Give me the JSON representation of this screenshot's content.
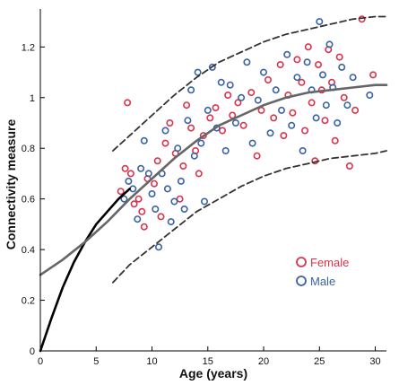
{
  "chart_data": {
    "type": "scatter",
    "title": "",
    "xlabel": "Age (years)",
    "ylabel": "Connectivity measure",
    "xlim": [
      0,
      31
    ],
    "ylim": [
      0,
      1.35
    ],
    "xticks": [
      0,
      5,
      10,
      15,
      20,
      25,
      30
    ],
    "yticks": [
      0,
      0.2,
      0.4,
      0.6,
      0.8,
      1,
      1.2
    ],
    "xtick_labels": [
      "0",
      "5",
      "10",
      "15",
      "20",
      "25",
      "30"
    ],
    "ytick_labels": [
      "0",
      "0.2",
      "0.4",
      "0.6",
      "0.8",
      "1",
      "1.2"
    ],
    "grid": false,
    "legend_position": "right-middle",
    "colors": {
      "female": "#d9344d",
      "male": "#3a62a6",
      "fit_black": "#000000",
      "fit_gray": "#666666",
      "dashed": "#333333"
    },
    "series": [
      {
        "name": "Female",
        "marker": "open-circle",
        "color": "#d9344d",
        "points": [
          [
            7.2,
            0.63
          ],
          [
            7.6,
            0.72
          ],
          [
            7.8,
            0.98
          ],
          [
            8.1,
            0.7
          ],
          [
            8.4,
            0.58
          ],
          [
            8.8,
            0.6
          ],
          [
            9.1,
            0.55
          ],
          [
            9.3,
            0.49
          ],
          [
            9.6,
            0.68
          ],
          [
            10.2,
            0.66
          ],
          [
            10.5,
            0.75
          ],
          [
            10.8,
            0.53
          ],
          [
            11.2,
            0.82
          ],
          [
            11.6,
            0.9
          ],
          [
            12.1,
            0.78
          ],
          [
            12.5,
            0.6
          ],
          [
            12.8,
            0.73
          ],
          [
            13.1,
            0.97
          ],
          [
            13.5,
            0.88
          ],
          [
            13.9,
            0.79
          ],
          [
            14.2,
            0.7
          ],
          [
            14.6,
            0.85
          ],
          [
            15.2,
            0.92
          ],
          [
            15.7,
            0.96
          ],
          [
            16.3,
            0.87
          ],
          [
            16.8,
            1.01
          ],
          [
            17.2,
            0.93
          ],
          [
            17.7,
            0.98
          ],
          [
            18.2,
            0.89
          ],
          [
            18.9,
            1.02
          ],
          [
            19.4,
            0.77
          ],
          [
            19.8,
            0.95
          ],
          [
            20.4,
            1.07
          ],
          [
            20.9,
            0.92
          ],
          [
            21.5,
            1.13
          ],
          [
            21.8,
            0.85
          ],
          [
            22.2,
            1.01
          ],
          [
            22.6,
            0.94
          ],
          [
            23.0,
            1.15
          ],
          [
            23.4,
            1.06
          ],
          [
            23.7,
            0.87
          ],
          [
            24.0,
            1.2
          ],
          [
            24.3,
            0.98
          ],
          [
            24.6,
            0.75
          ],
          [
            24.9,
            1.13
          ],
          [
            25.2,
            1.03
          ],
          [
            25.5,
            0.91
          ],
          [
            25.8,
            1.19
          ],
          [
            26.1,
            1.06
          ],
          [
            26.4,
            0.83
          ],
          [
            26.8,
            1.16
          ],
          [
            27.2,
            1.0
          ],
          [
            27.7,
            0.73
          ],
          [
            28.2,
            0.95
          ],
          [
            28.8,
            1.31
          ],
          [
            29.8,
            1.09
          ]
        ]
      },
      {
        "name": "Male",
        "marker": "open-circle",
        "color": "#3a62a6",
        "points": [
          [
            7.5,
            0.6
          ],
          [
            7.9,
            0.67
          ],
          [
            8.3,
            0.64
          ],
          [
            8.7,
            0.52
          ],
          [
            9.0,
            0.72
          ],
          [
            9.3,
            0.83
          ],
          [
            9.7,
            0.7
          ],
          [
            10.0,
            0.62
          ],
          [
            10.3,
            0.56
          ],
          [
            10.6,
            0.41
          ],
          [
            10.9,
            0.7
          ],
          [
            11.2,
            0.87
          ],
          [
            11.4,
            0.64
          ],
          [
            11.7,
            0.51
          ],
          [
            12.0,
            0.59
          ],
          [
            12.3,
            0.8
          ],
          [
            12.6,
            0.67
          ],
          [
            12.9,
            0.56
          ],
          [
            13.2,
            0.91
          ],
          [
            13.5,
            1.03
          ],
          [
            13.8,
            0.77
          ],
          [
            14.1,
            1.1
          ],
          [
            14.4,
            0.82
          ],
          [
            14.7,
            0.59
          ],
          [
            15.0,
            0.95
          ],
          [
            15.4,
            1.12
          ],
          [
            15.8,
            0.88
          ],
          [
            16.2,
            1.06
          ],
          [
            16.6,
            0.79
          ],
          [
            17.0,
            1.05
          ],
          [
            17.5,
            0.9
          ],
          [
            18.0,
            1.0
          ],
          [
            18.5,
            1.14
          ],
          [
            19.0,
            0.82
          ],
          [
            19.5,
            0.99
          ],
          [
            20.0,
            1.1
          ],
          [
            20.6,
            0.86
          ],
          [
            21.1,
            1.03
          ],
          [
            21.6,
            0.95
          ],
          [
            22.1,
            1.17
          ],
          [
            22.5,
            0.89
          ],
          [
            23.0,
            1.08
          ],
          [
            23.5,
            0.79
          ],
          [
            23.9,
            1.14
          ],
          [
            24.3,
            1.03
          ],
          [
            24.7,
            0.92
          ],
          [
            25.0,
            1.3
          ],
          [
            25.3,
            1.09
          ],
          [
            25.6,
            0.97
          ],
          [
            25.9,
            1.21
          ],
          [
            26.2,
            1.04
          ],
          [
            26.6,
            0.9
          ],
          [
            27.0,
            1.12
          ],
          [
            27.5,
            0.97
          ],
          [
            28.0,
            1.08
          ],
          [
            29.5,
            1.01
          ]
        ]
      }
    ],
    "fit_curves": [
      {
        "style": "solid-black",
        "x": [
          0,
          1,
          2,
          3,
          4,
          5,
          6,
          7,
          8
        ],
        "y": [
          0.0,
          0.13,
          0.25,
          0.35,
          0.43,
          0.5,
          0.55,
          0.6,
          0.64
        ]
      },
      {
        "style": "solid-gray",
        "x": [
          0,
          2,
          4,
          6,
          8,
          10,
          12,
          14,
          16,
          18,
          20,
          22,
          24,
          26,
          28,
          30,
          31
        ],
        "y": [
          0.3,
          0.36,
          0.43,
          0.51,
          0.6,
          0.68,
          0.76,
          0.83,
          0.89,
          0.93,
          0.97,
          1.0,
          1.02,
          1.03,
          1.04,
          1.05,
          1.05
        ]
      },
      {
        "style": "dashed-upper",
        "x": [
          6.5,
          8,
          10,
          12,
          14,
          16,
          18,
          20,
          22,
          24,
          26,
          28,
          30,
          31
        ],
        "y": [
          0.79,
          0.85,
          0.93,
          1.01,
          1.08,
          1.14,
          1.18,
          1.22,
          1.25,
          1.27,
          1.29,
          1.31,
          1.32,
          1.32
        ]
      },
      {
        "style": "dashed-lower",
        "x": [
          6.5,
          8,
          10,
          12,
          14,
          16,
          18,
          20,
          22,
          24,
          26,
          28,
          30,
          31
        ],
        "y": [
          0.27,
          0.34,
          0.41,
          0.48,
          0.55,
          0.6,
          0.65,
          0.69,
          0.72,
          0.74,
          0.76,
          0.77,
          0.78,
          0.79
        ]
      }
    ],
    "legend": [
      {
        "label": "Female",
        "color": "#d9344d"
      },
      {
        "label": "Male",
        "color": "#3a62a6"
      }
    ]
  }
}
